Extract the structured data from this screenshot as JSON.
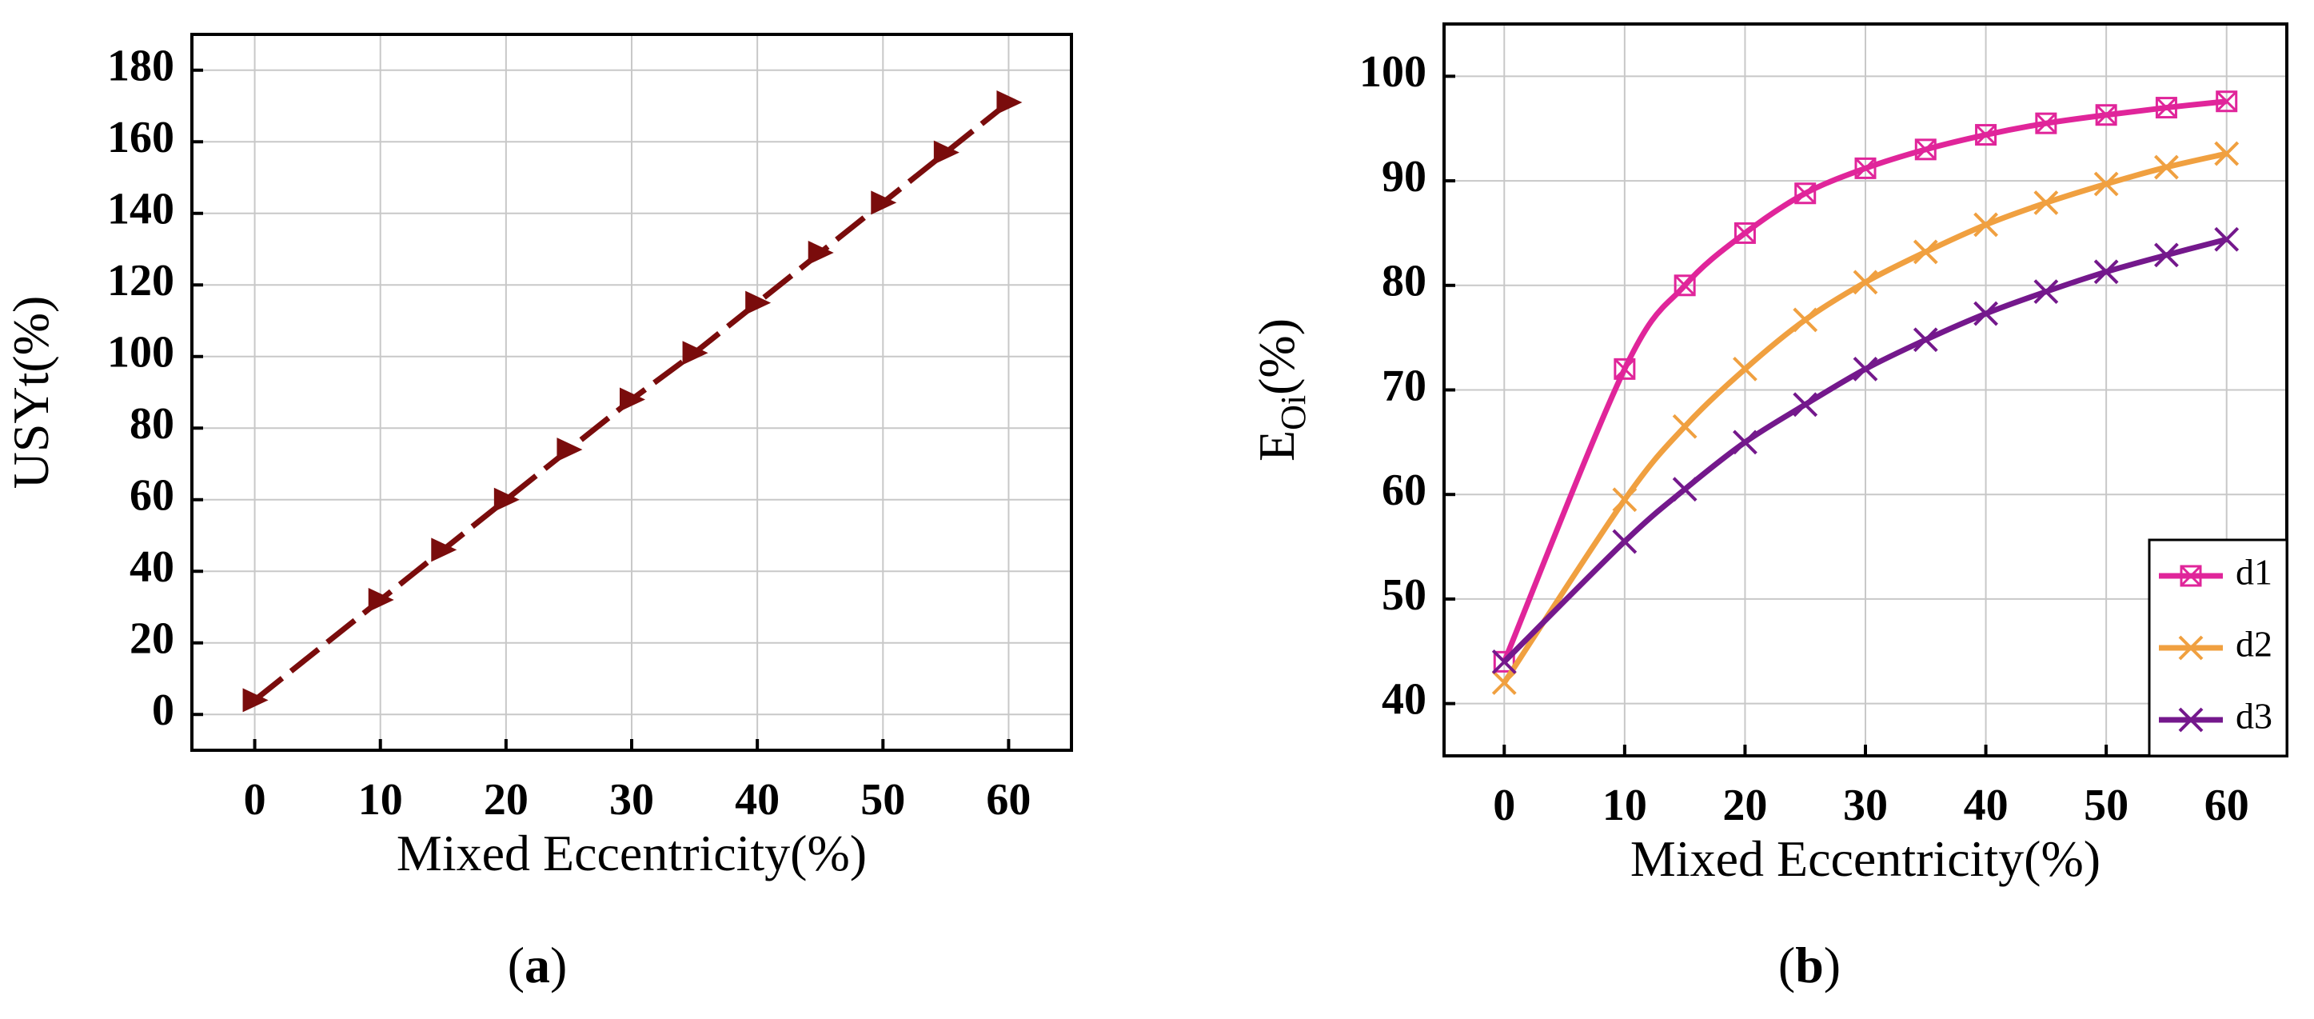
{
  "chart_data": [
    {
      "type": "line",
      "panel_label": "a",
      "xlabel": "Mixed Eccentricity(%)",
      "ylabel": "USYt(%)",
      "xlim": [
        -5,
        65
      ],
      "ylim": [
        -10,
        190
      ],
      "xticks": [
        0,
        10,
        20,
        30,
        40,
        50,
        60
      ],
      "yticks": [
        0,
        20,
        40,
        60,
        80,
        100,
        120,
        140,
        160,
        180
      ],
      "grid": true,
      "series": [
        {
          "name": "USYt",
          "color": "#7a0c0c",
          "line_style": "dashed",
          "marker": "triangle-right",
          "x": [
            0,
            10,
            15,
            20,
            25,
            30,
            35,
            40,
            45,
            50,
            55,
            60
          ],
          "values": [
            4,
            32,
            46,
            60,
            74,
            88,
            101,
            115,
            129,
            143,
            157,
            171
          ]
        }
      ]
    },
    {
      "type": "line",
      "panel_label": "b",
      "xlabel": "Mixed Eccentricity(%)",
      "ylabel_main": "E",
      "ylabel_sub": "Oi",
      "ylabel_unit": "(%)",
      "xlim": [
        -5,
        65
      ],
      "ylim": [
        35,
        105
      ],
      "xticks": [
        0,
        10,
        20,
        30,
        40,
        50,
        60
      ],
      "yticks": [
        40,
        50,
        60,
        70,
        80,
        90,
        100
      ],
      "grid": true,
      "legend_position": "bottom-right",
      "series": [
        {
          "name": "d1",
          "color": "#e0259a",
          "marker": "boxed-x",
          "x": [
            0,
            10,
            15,
            20,
            25,
            30,
            35,
            40,
            45,
            50,
            55,
            60
          ],
          "values": [
            44,
            72,
            80,
            85,
            88.8,
            91.2,
            93,
            94.4,
            95.5,
            96.3,
            97,
            97.6
          ]
        },
        {
          "name": "d2",
          "color": "#f0a040",
          "marker": "x",
          "x": [
            0,
            10,
            15,
            20,
            25,
            30,
            35,
            40,
            45,
            50,
            55,
            60
          ],
          "values": [
            42,
            59.5,
            66.5,
            72,
            76.7,
            80.3,
            83.2,
            85.8,
            87.9,
            89.7,
            91.3,
            92.6
          ]
        },
        {
          "name": "d3",
          "color": "#74188c",
          "marker": "x",
          "x": [
            0,
            10,
            15,
            20,
            25,
            30,
            35,
            40,
            45,
            50,
            55,
            60
          ],
          "values": [
            44,
            55.5,
            60.5,
            65,
            68.6,
            72,
            74.8,
            77.3,
            79.4,
            81.3,
            82.9,
            84.4
          ]
        }
      ]
    }
  ]
}
